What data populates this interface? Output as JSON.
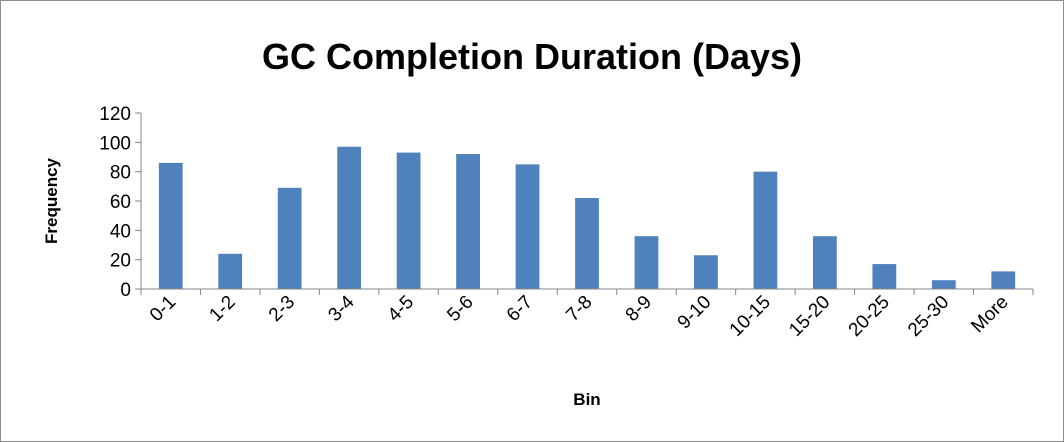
{
  "chart_data": {
    "type": "bar",
    "title": "GC Completion Duration (Days)",
    "xlabel": "Bin",
    "ylabel": "Frequency",
    "categories": [
      "0-1",
      "1-2",
      "2-3",
      "3-4",
      "4-5",
      "5-6",
      "6-7",
      "7-8",
      "8-9",
      "9-10",
      "10-15",
      "15-20",
      "20-25",
      "25-30",
      "More"
    ],
    "values": [
      86,
      24,
      69,
      97,
      93,
      92,
      85,
      62,
      36,
      23,
      80,
      36,
      17,
      6,
      12
    ],
    "ylim": [
      0,
      120
    ],
    "yticks": [
      0,
      20,
      40,
      60,
      80,
      100,
      120
    ],
    "grid": false,
    "legend": "none",
    "bar_color": "#4f81bd",
    "axis_color": "#868686"
  }
}
